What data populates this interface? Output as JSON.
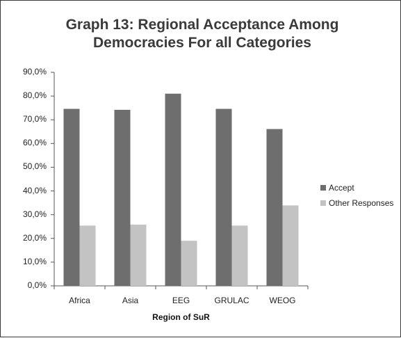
{
  "chart_data": {
    "type": "bar",
    "title": "Graph 13: Regional Acceptance Among Democracies For all Categories",
    "title_lines": [
      "Graph 13: Regional Acceptance Among",
      "Democracies For all Categories"
    ],
    "xlabel": "Region of SuR",
    "ylabel": "",
    "categories": [
      "Africa",
      "Asia",
      "EEG",
      "GRULAC",
      "WEOG"
    ],
    "series": [
      {
        "name": "Accept",
        "values": [
          74.6,
          74.2,
          81.0,
          74.6,
          66.1
        ],
        "color": "#6e6e6e"
      },
      {
        "name": "Other Responses",
        "values": [
          25.4,
          25.8,
          19.0,
          25.4,
          33.9
        ],
        "color": "#c3c3c3"
      }
    ],
    "ylim": [
      0,
      90
    ],
    "yticks": [
      "0,0%",
      "10,0%",
      "20,0%",
      "30,0%",
      "40,0%",
      "50,0%",
      "60,0%",
      "70,0%",
      "80,0%",
      "90,0%"
    ],
    "grid": false,
    "legend_position": "right"
  }
}
